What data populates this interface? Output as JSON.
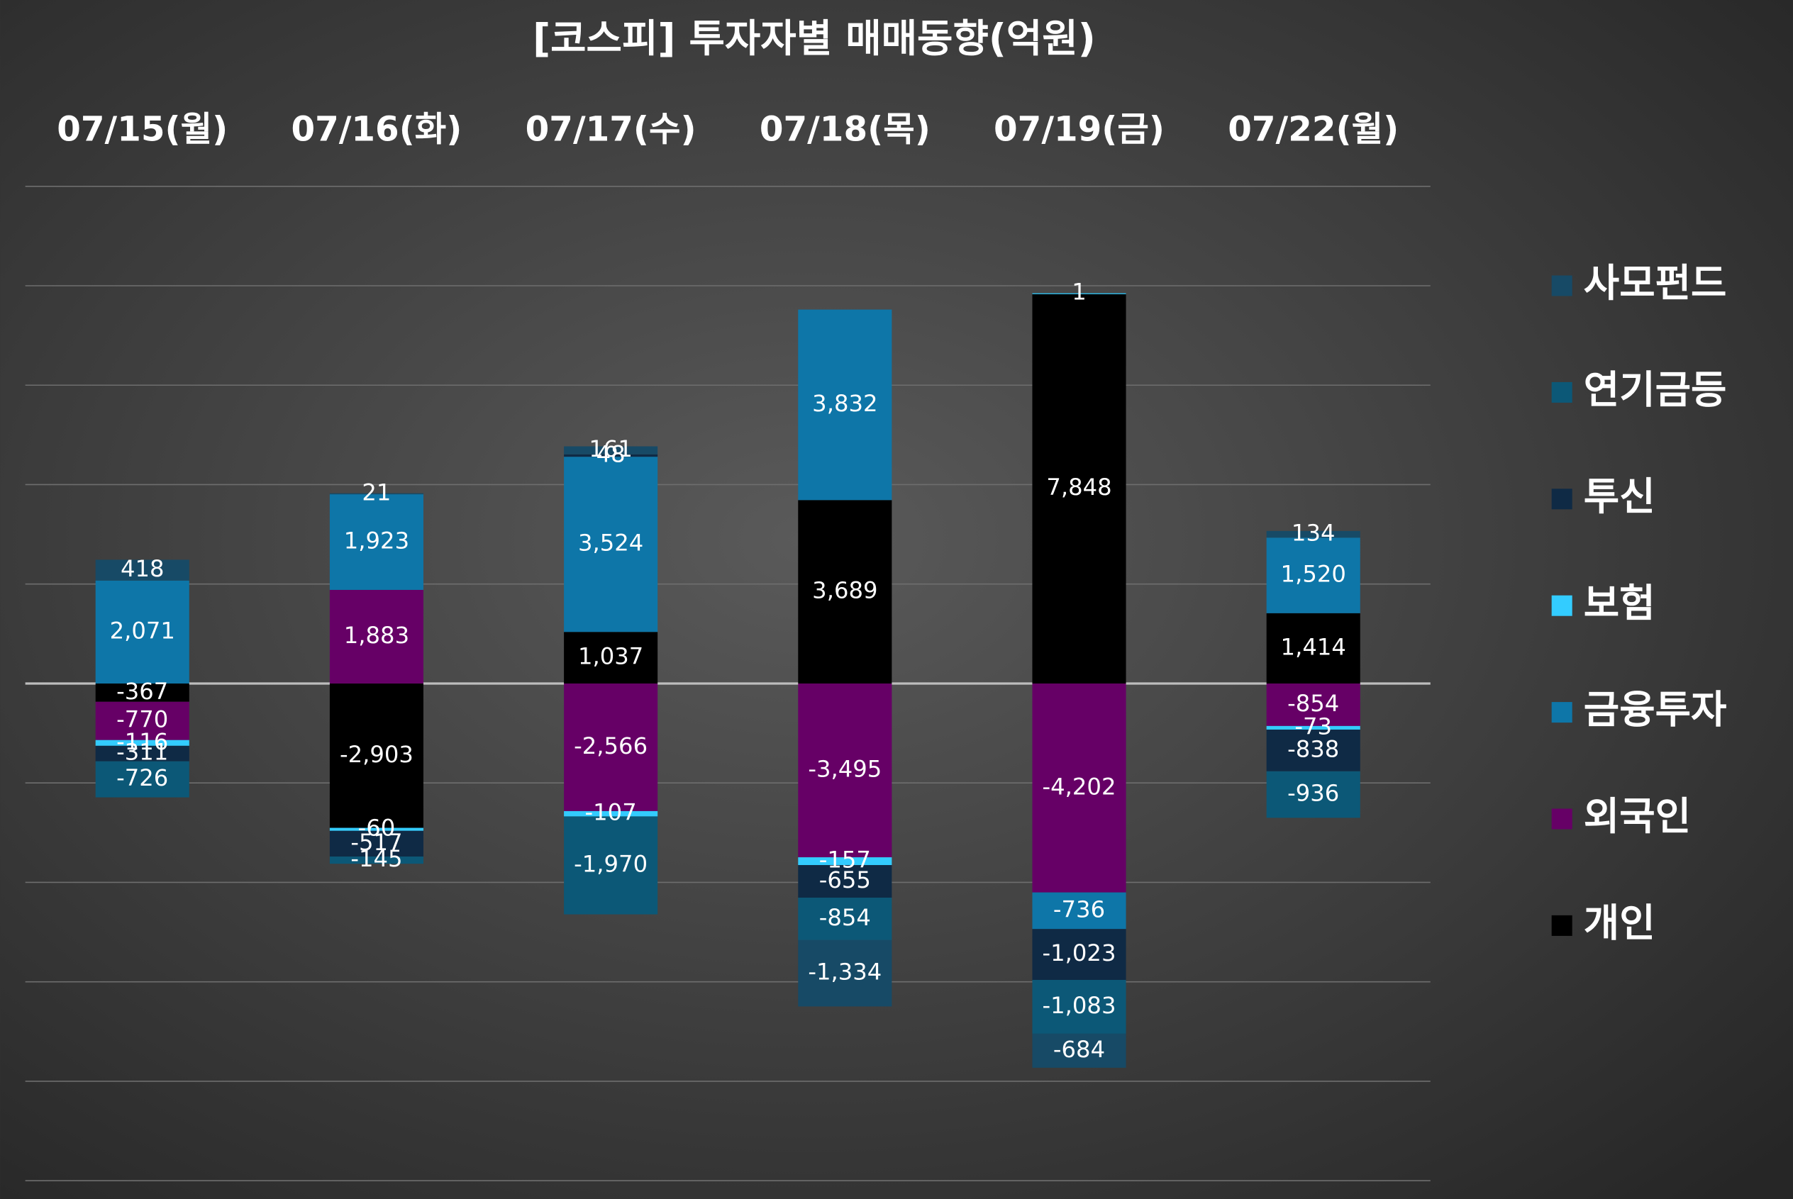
{
  "chart_data": {
    "type": "stacked_bar",
    "title": "[코스피] 투자자별 매매동향(억원)",
    "categories": [
      "07/15(월)",
      "07/16(화)",
      "07/17(수)",
      "07/18(목)",
      "07/19(금)",
      "07/22(월)"
    ],
    "series": [
      {
        "name": "개인",
        "color": "#000000",
        "values": [
          -367,
          -2903,
          1037,
          3689,
          7848,
          1414
        ],
        "value_labels": [
          "-367",
          "-2,903",
          "1,037",
          "3,689",
          "7,848",
          "1,414"
        ]
      },
      {
        "name": "외국인",
        "color": "#660066",
        "values": [
          -770,
          1883,
          -2566,
          -3495,
          -4202,
          -854
        ],
        "value_labels": [
          "-770",
          "1,883",
          "-2,566",
          "-3,495",
          "-4,202",
          "-854"
        ]
      },
      {
        "name": "금융투자",
        "color": "#0e76a8",
        "values": [
          2071,
          1923,
          3524,
          3832,
          -736,
          1520
        ],
        "value_labels": [
          "2,071",
          "1,923",
          "3,524",
          "3,832",
          "-736",
          "1,520"
        ]
      },
      {
        "name": "보험",
        "color": "#33ccff",
        "values": [
          -116,
          -60,
          -107,
          -157,
          1,
          -73
        ],
        "value_labels": [
          "-116",
          "-60",
          "-107",
          "-157",
          "1",
          "-73"
        ]
      },
      {
        "name": "투신",
        "color": "#0f2a45",
        "values": [
          -311,
          -517,
          48,
          -655,
          -1023,
          -838
        ],
        "value_labels": [
          "-311",
          "-517",
          "48",
          "-655",
          "-1,023",
          "-838"
        ]
      },
      {
        "name": "연기금등",
        "color": "#0c5877",
        "values": [
          -726,
          -145,
          -1970,
          -854,
          -1083,
          -936
        ],
        "value_labels": [
          "-726",
          "-145",
          "-1,970",
          "-854",
          "-1,083",
          "-936"
        ]
      },
      {
        "name": "사모펀드",
        "color": "#174a66",
        "values": [
          418,
          21,
          161,
          -1334,
          -684,
          134
        ],
        "value_labels": [
          "418",
          "21",
          "161",
          "-1,334",
          "-684",
          "134"
        ]
      }
    ],
    "ylim": [
      -10000,
      10000
    ],
    "yticks": [
      -10000,
      -8000,
      -6000,
      -4000,
      -2000,
      0,
      2000,
      4000,
      6000,
      8000,
      10000
    ],
    "grid": true
  }
}
